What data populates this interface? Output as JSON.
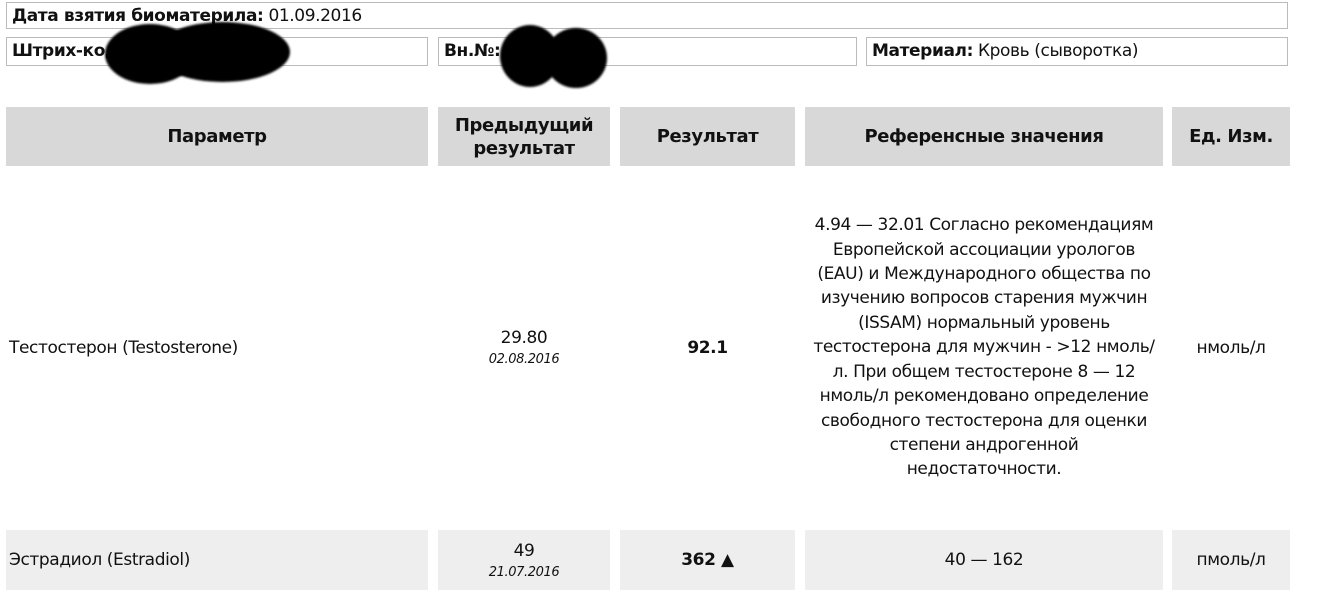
{
  "header": {
    "collection_date_label": "Дата взятия биоматерила:",
    "collection_date": "01.09.2016",
    "barcode_label": "Штрих-код:",
    "internal_no_label": "Вн.№:",
    "material_label": "Материал:",
    "material_value": "Кровь (сыворотка)"
  },
  "table": {
    "columns": [
      "Параметр",
      "Предыдущий результат",
      "Результат",
      "Референсные значения",
      "Ед. Изм."
    ],
    "rows": [
      {
        "parameter": "Тестостерон (Testosterone)",
        "previous_value": "29.80",
        "previous_date": "02.08.2016",
        "result": "92.1",
        "reference": "4.94 — 32.01 Согласно рекомендациям Европейской ассоциации урологов (EAU) и Международного общества по изучению вопросов старения мужчин (ISSAM) нормальный уровень тестостерона для мужчин - >12 нмоль/л. При общем тестостероне 8 — 12 нмоль/л рекомендовано определение свободного тестостерона для оценки степени андрогенной недостаточности.",
        "unit": "нмоль/л"
      },
      {
        "parameter": "Эстрадиол (Estradiol)",
        "previous_value": "49",
        "previous_date": "21.07.2016",
        "result": "362 ▲",
        "reference": "40 — 162",
        "unit": "пмоль/л"
      }
    ]
  }
}
